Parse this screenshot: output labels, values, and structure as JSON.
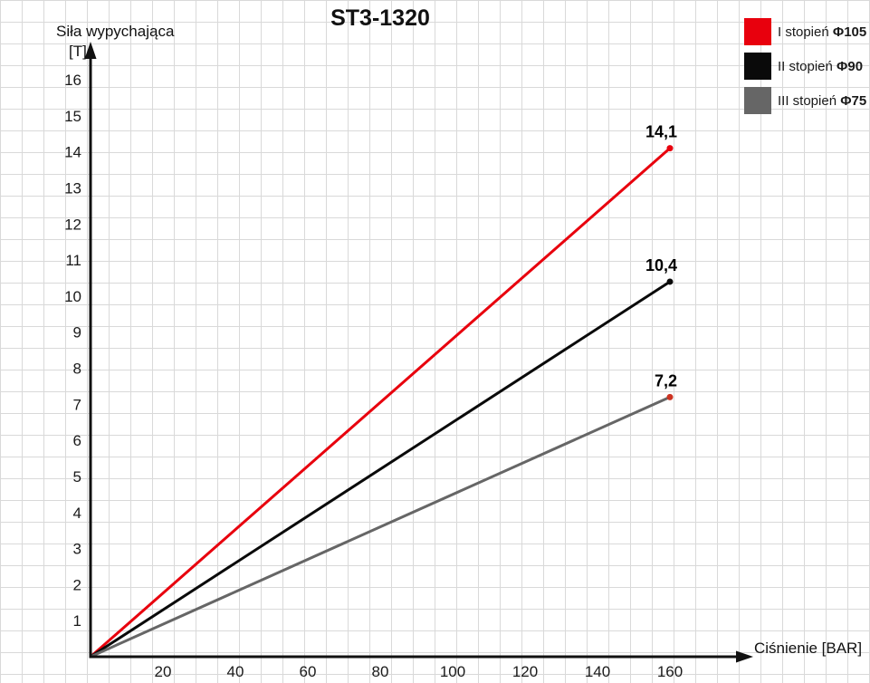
{
  "chart_data": {
    "type": "line",
    "title": "ST3-1320",
    "xlabel": "Ciśnienie [BAR]",
    "ylabel": "Siła wypychająca",
    "y_unit": "[T]",
    "xlim": [
      0,
      160
    ],
    "ylim": [
      0,
      16
    ],
    "x_ticks": [
      20,
      40,
      60,
      80,
      100,
      120,
      140,
      160
    ],
    "y_ticks": [
      1,
      2,
      3,
      4,
      5,
      6,
      7,
      8,
      9,
      10,
      11,
      12,
      13,
      14,
      15,
      16
    ],
    "grid": true,
    "grid_color": "#d9d9d9",
    "axis_color": "#111111",
    "legend_position": "top-right",
    "series": [
      {
        "name": "I stopień Φ105",
        "legend_prefix": "I stopień",
        "legend_phi": "Φ105",
        "color": "#e8000d",
        "marker_color": "#e8000d",
        "x": [
          0,
          160
        ],
        "values": [
          0,
          14.1
        ],
        "end_label": "14,1"
      },
      {
        "name": "II stopień Φ90",
        "legend_prefix": "II stopień",
        "legend_phi": "Φ90",
        "color": "#0a0a0a",
        "marker_color": "#0a0a0a",
        "x": [
          0,
          160
        ],
        "values": [
          0,
          10.4
        ],
        "end_label": "10,4"
      },
      {
        "name": "III stopień Φ75",
        "legend_prefix": "III stopień",
        "legend_phi": "Φ75",
        "color": "#666666",
        "marker_color": "#cc3322",
        "x": [
          0,
          160
        ],
        "values": [
          0,
          7.2
        ],
        "end_label": "7,2"
      }
    ]
  }
}
